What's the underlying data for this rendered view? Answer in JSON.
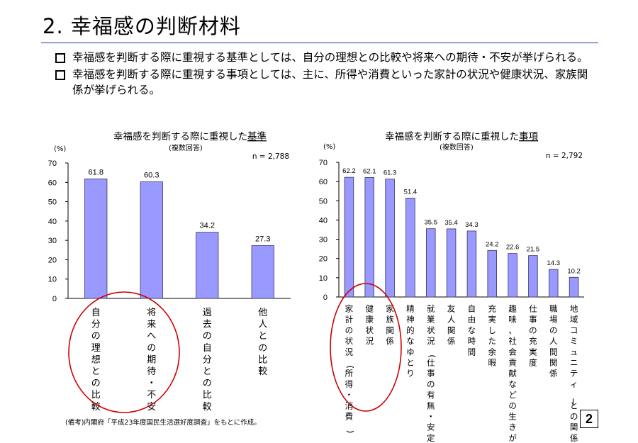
{
  "slide": {
    "title": "2. 幸福感の判断材料",
    "bullets": [
      "幸福感を判断する際に重視する基準としては、自分の理想との比較や将来への期待・不安が挙げられる。",
      "幸福感を判断する際に重視する事項としては、主に、所得や消費といった家計の状況や健康状況、家族関係が挙げられる。"
    ],
    "source": "(備考)内閣府「平成23年度国民生活選好度調査」をもとに作成。",
    "page_number": "2"
  },
  "colors": {
    "bar_fill": "#9999ff",
    "bar_stroke": "#333366",
    "circle": "#cc0000",
    "rule": "#1f3aa0"
  },
  "chart_data": [
    {
      "type": "bar",
      "title_prefix": "幸福感を判断する際に重視した",
      "title_underlined": "基準",
      "subtitle": "(複数回答)",
      "ylabel": "(%)",
      "n_label": "n = 2,788",
      "ylim": [
        0,
        70
      ],
      "yticks": [
        "0",
        "10",
        "20",
        "30",
        "40",
        "50",
        "60",
        "70"
      ],
      "categories": [
        "自分の理想との比較",
        "将来への期待・不安",
        "過去の自分との比較",
        "他人との比較"
      ],
      "values": [
        61.8,
        60.3,
        34.2,
        27.3
      ],
      "value_labels": [
        "61.8",
        "60.3",
        "34.2",
        "27.3"
      ],
      "highlighted": [
        0,
        1
      ]
    },
    {
      "type": "bar",
      "title_prefix": "幸福感を判断する際に重視した",
      "title_underlined": "事項",
      "subtitle": "(複数回答)",
      "ylabel": "(%)",
      "n_label": "n = 2,792",
      "ylim": [
        0,
        70
      ],
      "yticks": [
        "0",
        "10",
        "20",
        "30",
        "40",
        "50",
        "60",
        "70"
      ],
      "categories": [
        "家計の状況(所得・消費)",
        "健康状況",
        "家族関係",
        "精神的なゆとり",
        "就業状況(仕事の有無・安定)",
        "友人関係",
        "自由な時間",
        "充実した余暇",
        "趣味、社会貢献などの生きがい",
        "仕事の充実度",
        "職場の人間関係",
        "地域コミュニティーとの関係"
      ],
      "values": [
        62.2,
        62.1,
        61.3,
        51.4,
        35.5,
        35.4,
        34.3,
        24.2,
        22.6,
        21.5,
        14.3,
        10.2
      ],
      "value_labels": [
        "62.2",
        "62.1",
        "61.3",
        "51.4",
        "35.5",
        "35.4",
        "34.3",
        "24.2",
        "22.6",
        "21.5",
        "14.3",
        "10.2"
      ],
      "highlighted": [
        0,
        1,
        2
      ]
    }
  ]
}
